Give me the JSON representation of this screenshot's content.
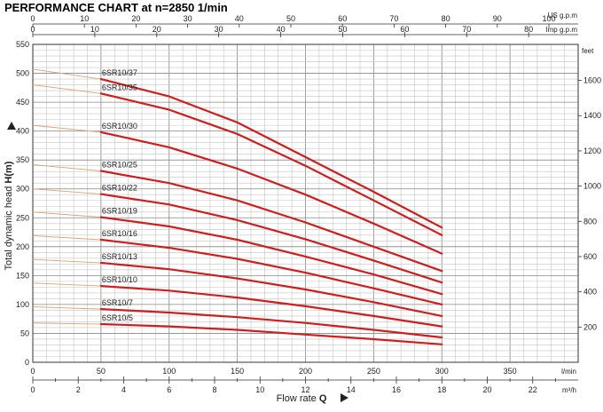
{
  "title": "PERFORMANCE CHART at n=2850 1/min",
  "units": {
    "us_gpm": "US g.p.m",
    "imp_gpm": "Imp g.p.m",
    "feet": "feet",
    "lmin": "l/min",
    "m3h": "m³/h"
  },
  "axis_labels": {
    "y_left_prefix": "Total dynamic head ",
    "y_left_symbol": "H(m)",
    "x_bottom_prefix": "Flow rate ",
    "x_bottom_symbol": "Q"
  },
  "chart_data": {
    "type": "line",
    "title": "PERFORMANCE CHART at n=2850 1/min",
    "xlabel": "Flow rate Q",
    "ylabel": "Total dynamic head H(m)",
    "x_unit": "l/min",
    "y_unit": "m",
    "xlim": [
      0,
      400
    ],
    "ylim": [
      0,
      550
    ],
    "grid": true,
    "legend": "curve labels at left end of each curve",
    "color": "#cc1f1f",
    "extrapolation_color": "#e0a070",
    "axes": {
      "y_left": {
        "ticks": [
          0,
          50,
          100,
          150,
          200,
          250,
          300,
          350,
          400,
          450,
          500,
          550
        ]
      },
      "y_right_feet": {
        "label": "feet",
        "ticks": [
          200,
          400,
          600,
          800,
          1000,
          1200,
          1400,
          1600
        ]
      },
      "x_bottom_lmin": {
        "label": "l/min",
        "ticks": [
          0,
          50,
          100,
          150,
          200,
          250,
          300,
          350
        ]
      },
      "x_bottom_m3h": {
        "label": "m³/h",
        "ticks": [
          0,
          2,
          4,
          6,
          8,
          10,
          12,
          14,
          16,
          18,
          20,
          22
        ]
      },
      "x_top_usgpm": {
        "label": "US g.p.m",
        "ticks": [
          0,
          10,
          20,
          30,
          40,
          50,
          60,
          70,
          80,
          90,
          100
        ]
      },
      "x_top_impgpm": {
        "label": "Imp g.p.m",
        "ticks": [
          0,
          10,
          20,
          30,
          40,
          50,
          60,
          70,
          80
        ]
      }
    },
    "x": [
      0,
      50,
      100,
      150,
      200,
      250,
      300
    ],
    "series": [
      {
        "name": "6SR10/37",
        "values": [
          507,
          490,
          460,
          415,
          355,
          295,
          233
        ]
      },
      {
        "name": "6SR10/35",
        "values": [
          480,
          465,
          437,
          395,
          340,
          280,
          220
        ]
      },
      {
        "name": "6SR10/30",
        "values": [
          410,
          398,
          372,
          335,
          290,
          240,
          188
        ]
      },
      {
        "name": "6SR10/25",
        "values": [
          342,
          331,
          310,
          280,
          242,
          200,
          158
        ]
      },
      {
        "name": "6SR10/22",
        "values": [
          300,
          291,
          273,
          246,
          213,
          176,
          138
        ]
      },
      {
        "name": "6SR10/19",
        "values": [
          260,
          251,
          235,
          212,
          183,
          152,
          118
        ]
      },
      {
        "name": "6SR10/16",
        "values": [
          219,
          212,
          198,
          179,
          155,
          128,
          100
        ]
      },
      {
        "name": "6SR10/13",
        "values": [
          178,
          172,
          161,
          145,
          126,
          104,
          80
        ]
      },
      {
        "name": "6SR10/10",
        "values": [
          137,
          132,
          124,
          112,
          97,
          80,
          62
        ]
      },
      {
        "name": "6SR10/7",
        "values": [
          96,
          92,
          86,
          78,
          68,
          56,
          43
        ]
      },
      {
        "name": "6SR10/5",
        "values": [
          68,
          66,
          62,
          56,
          48,
          40,
          31
        ]
      }
    ]
  }
}
